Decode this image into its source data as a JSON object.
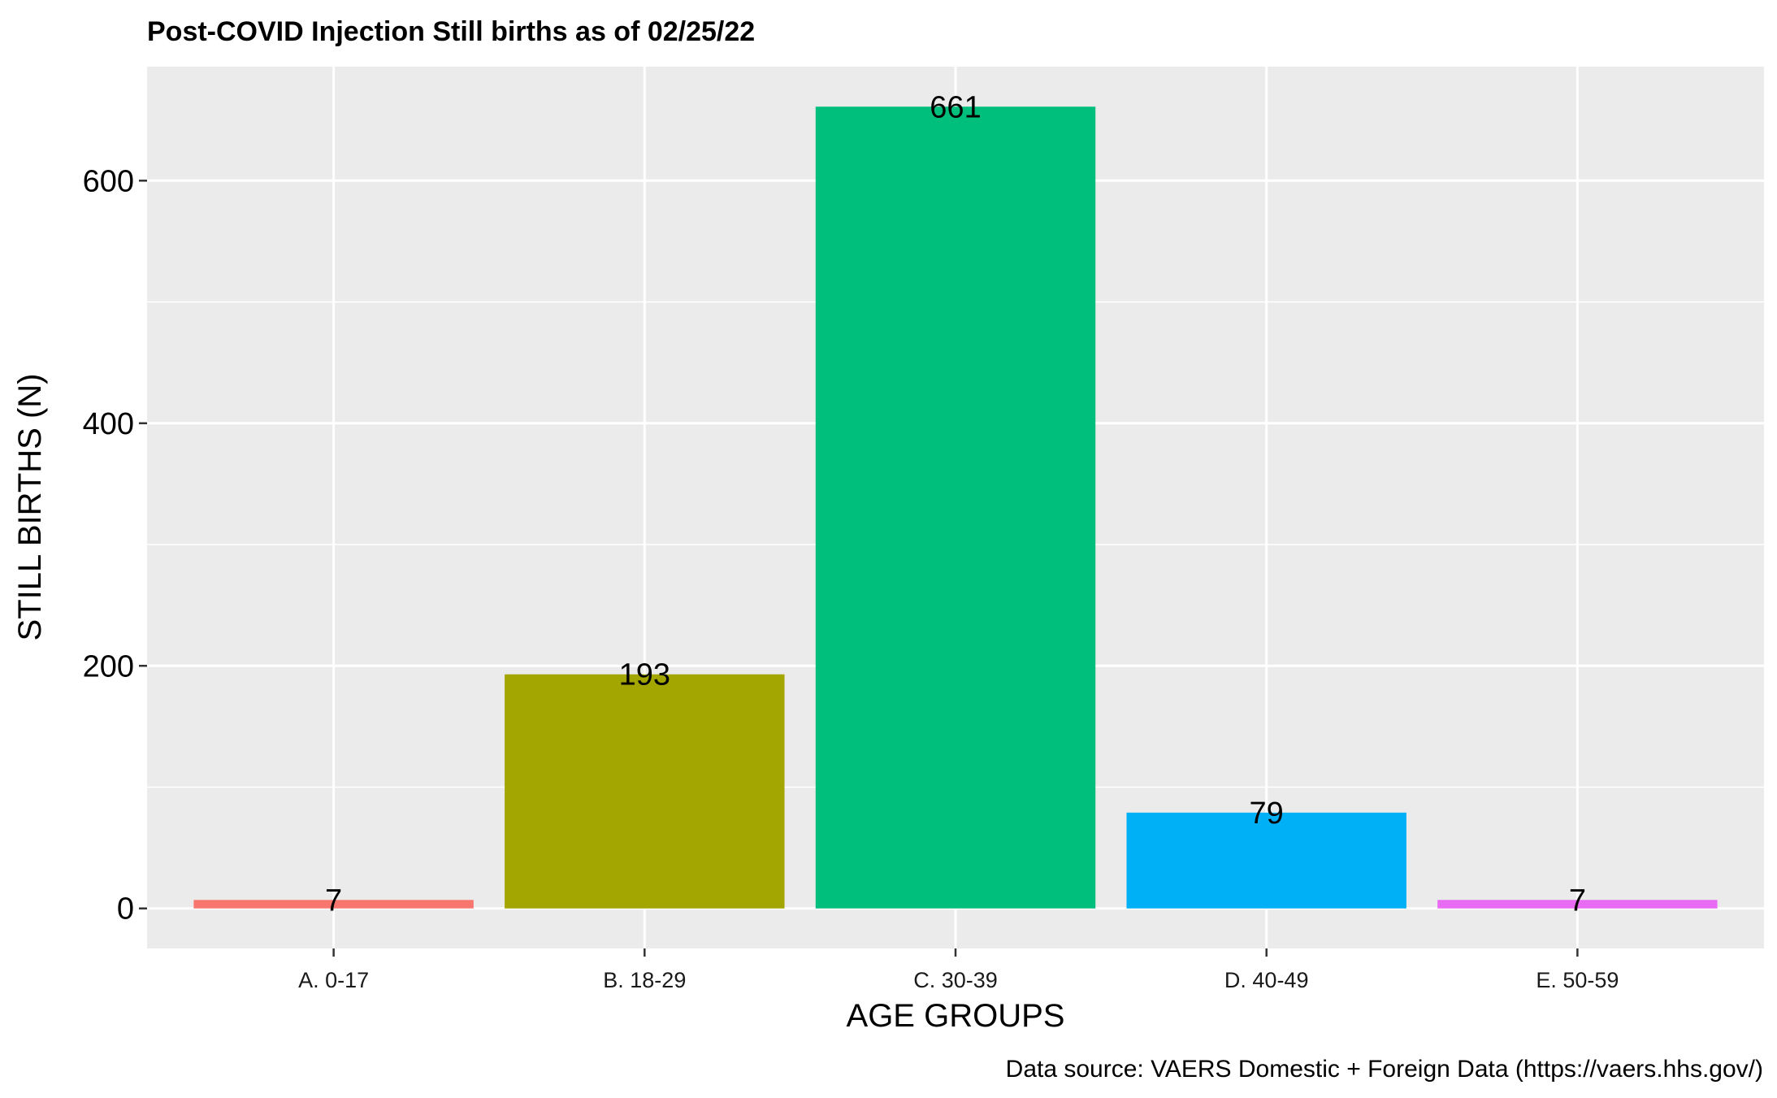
{
  "chart_data": {
    "type": "bar",
    "title": "Post-COVID Injection Still births as of 02/25/22",
    "xlabel": "AGE GROUPS",
    "ylabel": "STILL BIRTHS (N)",
    "caption": "Data source: VAERS Domestic + Foreign Data (https://vaers.hhs.gov/)",
    "categories": [
      "A. 0-17",
      "B. 18-29",
      "C. 30-39",
      "D. 40-49",
      "E. 50-59"
    ],
    "values": [
      7,
      193,
      661,
      79,
      7
    ],
    "colors": [
      "#F8766D",
      "#A3A500",
      "#00BF7D",
      "#00B0F6",
      "#E76BF3"
    ],
    "ylim": [
      -33,
      694
    ],
    "yticks": [
      0,
      200,
      400,
      600
    ],
    "background": "#EBEBEB",
    "grid": true,
    "legend": "none"
  }
}
